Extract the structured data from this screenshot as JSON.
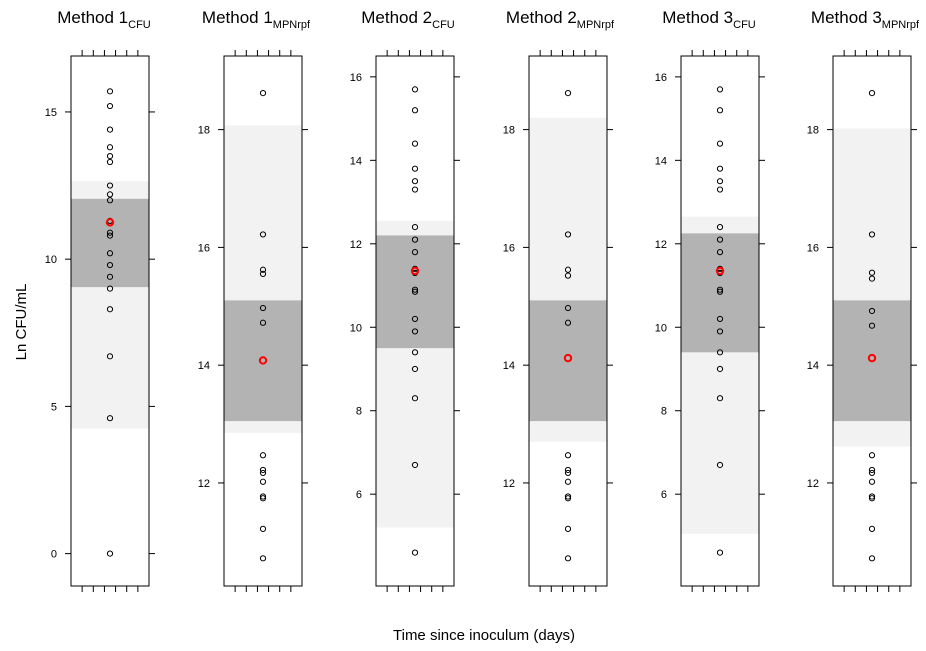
{
  "ylabel": "Ln CFU/mL",
  "xlabel": "Time since inoculum (days)",
  "colors": {
    "band_light": "#f2f2f2",
    "band_dark": "#b3b3b3",
    "points": "#000000",
    "highlight": "#ff0000",
    "frame": "#000000"
  },
  "chart_data": [
    {
      "type": "scatter",
      "title": "Method 1",
      "subscript": "CFU",
      "ylim": [
        -1.1,
        16.9
      ],
      "yticks": [
        0,
        5,
        10,
        15
      ],
      "bands": {
        "light": [
          4.25,
          12.65
        ],
        "dark": [
          9.05,
          12.05
        ]
      },
      "values": [
        15.7,
        15.2,
        14.4,
        13.8,
        13.5,
        13.3,
        12.5,
        12.2,
        12.0,
        11.3,
        10.9,
        10.8,
        10.2,
        9.8,
        9.4,
        9.0,
        8.3,
        6.7,
        4.6,
        0.0
      ],
      "highlight": 11.25
    },
    {
      "type": "scatter",
      "title": "Method 1",
      "subscript": "MPNrpf",
      "ylim": [
        10.25,
        19.25
      ],
      "yticks": [
        12,
        14,
        16,
        18
      ],
      "bands": {
        "light": [
          12.85,
          18.07
        ],
        "dark": [
          13.05,
          15.1
        ]
      },
      "values": [
        18.62,
        16.22,
        15.62,
        15.55,
        14.97,
        14.72,
        12.47,
        12.22,
        12.17,
        12.02,
        11.77,
        11.74,
        11.22,
        10.72
      ],
      "highlight": 14.08
    },
    {
      "type": "scatter",
      "title": "Method 2",
      "subscript": "CFU",
      "ylim": [
        3.8,
        16.5
      ],
      "yticks": [
        6,
        8,
        10,
        12,
        14,
        16
      ],
      "bands": {
        "light": [
          5.2,
          12.55
        ],
        "dark": [
          9.5,
          12.2
        ]
      },
      "values": [
        15.7,
        15.2,
        14.4,
        13.8,
        13.5,
        13.3,
        12.4,
        12.1,
        11.8,
        11.4,
        11.3,
        10.9,
        10.85,
        10.2,
        9.9,
        9.4,
        9.0,
        8.3,
        6.7,
        4.6
      ],
      "highlight": 11.35
    },
    {
      "type": "scatter",
      "title": "Method 2",
      "subscript": "MPNrpf",
      "ylim": [
        10.25,
        19.25
      ],
      "yticks": [
        12,
        14,
        16,
        18
      ],
      "bands": {
        "light": [
          12.7,
          18.2
        ],
        "dark": [
          13.05,
          15.1
        ]
      },
      "values": [
        18.62,
        16.22,
        15.62,
        15.52,
        14.97,
        14.72,
        12.47,
        12.22,
        12.17,
        12.02,
        11.77,
        11.74,
        11.22,
        10.72
      ],
      "highlight": 14.12
    },
    {
      "type": "scatter",
      "title": "Method 3",
      "subscript": "CFU",
      "ylim": [
        3.8,
        16.5
      ],
      "yticks": [
        6,
        8,
        10,
        12,
        14,
        16
      ],
      "bands": {
        "light": [
          5.05,
          12.65
        ],
        "dark": [
          9.4,
          12.25
        ]
      },
      "values": [
        15.7,
        15.2,
        14.4,
        13.8,
        13.5,
        13.3,
        12.4,
        12.1,
        11.8,
        11.4,
        11.3,
        10.9,
        10.85,
        10.2,
        9.9,
        9.4,
        9.0,
        8.3,
        6.7,
        4.6
      ],
      "highlight": 11.35
    },
    {
      "type": "scatter",
      "title": "Method 3",
      "subscript": "MPNrpf",
      "ylim": [
        10.25,
        19.25
      ],
      "yticks": [
        12,
        14,
        16,
        18
      ],
      "bands": {
        "light": [
          12.62,
          18.02
        ],
        "dark": [
          13.05,
          15.1
        ]
      },
      "values": [
        18.62,
        16.22,
        15.57,
        15.47,
        14.92,
        14.67,
        12.47,
        12.22,
        12.17,
        12.02,
        11.77,
        11.74,
        11.22,
        10.72
      ],
      "highlight": 14.12
    }
  ]
}
